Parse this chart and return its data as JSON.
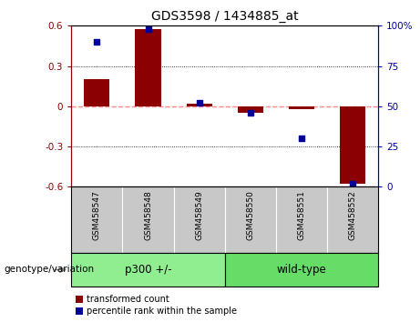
{
  "title": "GDS3598 / 1434885_at",
  "samples": [
    "GSM458547",
    "GSM458548",
    "GSM458549",
    "GSM458550",
    "GSM458551",
    "GSM458552"
  ],
  "bar_values": [
    0.2,
    0.575,
    0.02,
    -0.05,
    -0.02,
    -0.58
  ],
  "percentile_values": [
    90,
    98,
    52,
    46,
    30,
    2
  ],
  "ylim_left": [
    -0.6,
    0.6
  ],
  "ylim_right": [
    0,
    100
  ],
  "yticks_left": [
    -0.6,
    -0.3,
    0.0,
    0.3,
    0.6
  ],
  "yticks_right": [
    0,
    25,
    50,
    75,
    100
  ],
  "bar_color": "#8B0000",
  "dot_color": "#000099",
  "zero_line_color": "#FF8888",
  "grid_color": "black",
  "bg_color": "white",
  "sample_bg_color": "#C8C8C8",
  "legend_red_label": "transformed count",
  "legend_blue_label": "percentile rank within the sample",
  "genotype_label": "genotype/variation",
  "group1_label": "p300 +/-",
  "group2_label": "wild-type",
  "group1_color": "#90EE90",
  "group2_color": "#66DD66"
}
